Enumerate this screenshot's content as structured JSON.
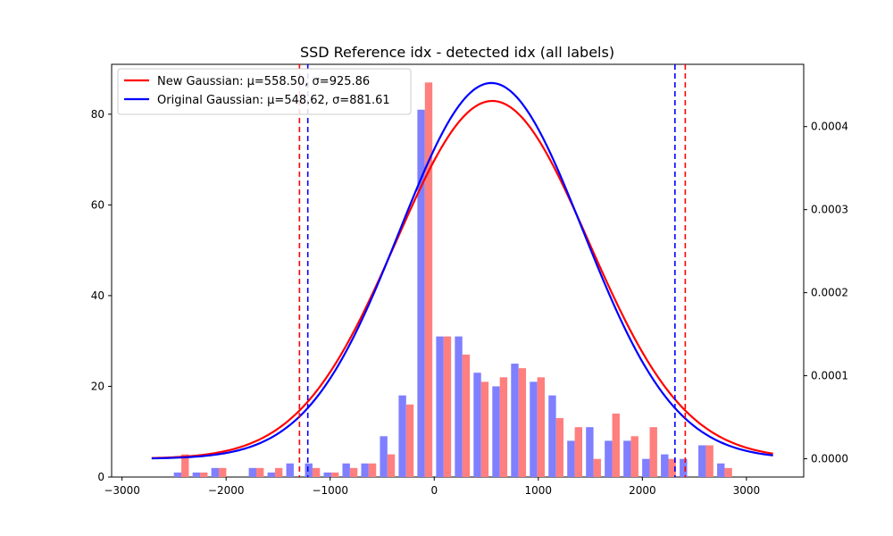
{
  "chart_data": {
    "type": "bar",
    "title": "SSD Reference idx - detected idx (all labels)",
    "xlabel": "",
    "ylabel": "",
    "x_ticks": [
      -3000,
      -2000,
      -1000,
      0,
      1000,
      2000,
      3000
    ],
    "y_ticks": [
      0,
      20,
      40,
      60,
      80
    ],
    "y2_ticks": [
      0.0,
      0.0001,
      0.0002,
      0.0003,
      0.0004
    ],
    "x_tick_labels": [
      "−3000",
      "−2000",
      "−1000",
      "0",
      "1000",
      "2000",
      "3000"
    ],
    "y_tick_labels": [
      "0",
      "20",
      "40",
      "60",
      "80"
    ],
    "y2_tick_labels": [
      "0.0000",
      "0.0001",
      "0.0002",
      "0.0003",
      "0.0004"
    ],
    "xlim": [
      -3100,
      3550
    ],
    "ylim": [
      0,
      91
    ],
    "y2lim": [
      -2.2e-05,
      0.000475
    ],
    "bin_width": 180,
    "bin_centers": [
      -2430,
      -2250,
      -2070,
      -1890,
      -1710,
      -1530,
      -1350,
      -1170,
      -990,
      -810,
      -630,
      -450,
      -270,
      -90,
      90,
      270,
      450,
      630,
      810,
      990,
      1170,
      1350,
      1530,
      1710,
      1890,
      2070,
      2250,
      2430,
      2610,
      2790
    ],
    "histograms": [
      {
        "name": "",
        "color": "#7f7fff",
        "values": [
          1,
          1,
          2,
          0,
          2,
          1,
          3,
          3,
          1,
          3,
          3,
          9,
          18,
          81,
          31,
          31,
          23,
          20,
          25,
          21,
          18,
          8,
          11,
          8,
          8,
          4,
          5,
          4,
          7,
          3
        ]
      },
      {
        "name": "",
        "color": "#ff7f7f",
        "values": [
          5,
          1,
          2,
          0,
          2,
          2,
          0,
          2,
          1,
          2,
          3,
          5,
          16,
          87,
          31,
          27,
          21,
          22,
          24,
          22,
          13,
          11,
          4,
          14,
          9,
          11,
          4,
          0,
          7,
          2
        ]
      }
    ],
    "curves": [
      {
        "name": "New Gaussian: μ=558.50, σ=925.86",
        "color": "#ff0000",
        "mu": 558.5,
        "sigma": 925.86,
        "x_range": [
          -2715,
          3255
        ],
        "vlines": [
          -1295,
          2412
        ]
      },
      {
        "name": "Original Gaussian: μ=548.62, σ=881.61",
        "color": "#0000ff",
        "mu": 548.62,
        "sigma": 881.61,
        "x_range": [
          -2715,
          3255
        ],
        "vlines": [
          -1215,
          2313
        ]
      }
    ],
    "legend_position": "upper-left",
    "grid": false
  }
}
